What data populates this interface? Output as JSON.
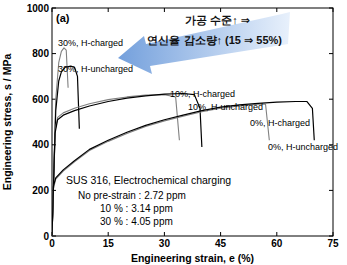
{
  "chart_data": {
    "type": "line",
    "panel_label": "(a)",
    "x_label": "Engineering strain, e (%)",
    "y_label": "Engineering stress, s / MPa",
    "xlim": [
      0,
      75
    ],
    "xticks": [
      0,
      15,
      30,
      45,
      60,
      75
    ],
    "ylim": [
      0,
      1000
    ],
    "yticks": [
      0,
      200,
      400,
      600,
      800,
      1000
    ],
    "grid": false,
    "annotations": [
      "SUS 316, Electrochemical charging",
      "No pre-strain : 2.72 ppm",
      "10 % : 3.14 ppm",
      "30 % : 4.05 ppm"
    ],
    "arrow_text": [
      "가공 수준↑ ⇒",
      "연신율 감소량↑ (15 ⇒ 55%)"
    ],
    "series": [
      {
        "name": "30%, H-charged",
        "color": "#808080",
        "line_style": "solid",
        "x": [
          0,
          1,
          1.8,
          2.5,
          3.2,
          3.8,
          4.3
        ],
        "values": [
          0,
          600,
          760,
          810,
          825,
          815,
          650
        ]
      },
      {
        "name": "30%, H-uncharged",
        "color": "#000000",
        "line_style": "solid",
        "x": [
          0,
          1,
          1.8,
          2.5,
          3.5,
          5,
          6,
          6.8,
          7.3
        ],
        "values": [
          0,
          550,
          680,
          720,
          740,
          745,
          740,
          700,
          470
        ]
      },
      {
        "name": "10%, H-charged",
        "color": "#808080",
        "line_style": "solid",
        "x": [
          0,
          0.8,
          1.5,
          3,
          6,
          10,
          15,
          20,
          25,
          30,
          33,
          34
        ],
        "values": [
          0,
          460,
          520,
          540,
          560,
          580,
          598,
          610,
          618,
          620,
          610,
          420
        ]
      },
      {
        "name": "10%, H-uncharged",
        "color": "#000000",
        "line_style": "solid",
        "x": [
          0,
          0.8,
          1.5,
          3,
          6,
          10,
          15,
          20,
          25,
          30,
          35,
          38,
          39.5,
          40
        ],
        "values": [
          0,
          450,
          510,
          530,
          550,
          570,
          590,
          605,
          615,
          622,
          625,
          620,
          560,
          390
        ]
      },
      {
        "name": "0%, H-charged",
        "color": "#808080",
        "line_style": "solid",
        "x": [
          0,
          0.4,
          1,
          3,
          6,
          10,
          15,
          20,
          25,
          30,
          35,
          40,
          45,
          50,
          55,
          57,
          58
        ],
        "values": [
          0,
          210,
          250,
          285,
          325,
          375,
          415,
          450,
          480,
          505,
          525,
          545,
          560,
          570,
          578,
          578,
          420
        ]
      },
      {
        "name": "0%, H-uncharged",
        "color": "#000000",
        "line_style": "solid",
        "x": [
          0,
          0.4,
          1,
          3,
          6,
          10,
          15,
          20,
          25,
          30,
          35,
          40,
          45,
          50,
          55,
          60,
          65,
          68,
          69.5,
          70
        ],
        "values": [
          0,
          220,
          255,
          290,
          330,
          380,
          420,
          455,
          485,
          510,
          530,
          550,
          565,
          575,
          582,
          587,
          590,
          590,
          560,
          420
        ]
      }
    ]
  }
}
